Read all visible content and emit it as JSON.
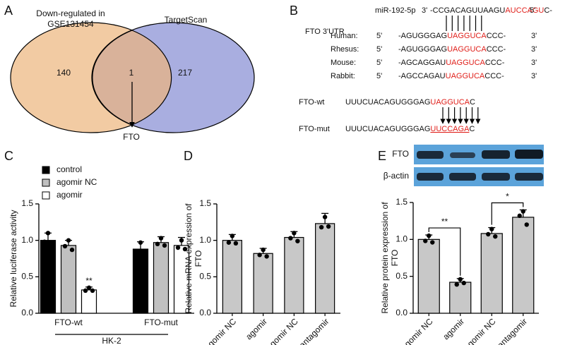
{
  "panel_labels": [
    "A",
    "B",
    "C",
    "D",
    "E"
  ],
  "venn": {
    "left_label": [
      "Down-regulated in",
      "GSE131454"
    ],
    "right_label": "TargetScan",
    "counts": [
      140,
      1,
      217
    ],
    "arrow_label": "FTO"
  },
  "sequence_panel": {
    "utr_label": "FTO 3'UTR",
    "mirna": {
      "name": "miR-192-5p",
      "left_end": "3'",
      "seq": [
        "-CCGACAGUUAAGU",
        "AUCCAGU",
        "C-"
      ],
      "right_end": "5'"
    },
    "species": [
      {
        "name": "Human:",
        "left_end": "5'",
        "seq": [
          "-AGUGGGAG",
          "UAGGUCA",
          "CCC-"
        ],
        "right_end": "3'"
      },
      {
        "name": "Rhesus:",
        "left_end": "5'",
        "seq": [
          "-AGUGGGAG",
          "UAGGUCA",
          "CCC-"
        ],
        "right_end": "3'"
      },
      {
        "name": "Mouse:",
        "left_end": "5'",
        "seq": [
          "-AGCAGGAU",
          "UAGGUCA",
          "CCC-"
        ],
        "right_end": "3'"
      },
      {
        "name": "Rabbit:",
        "left_end": "5'",
        "seq": [
          "-AGCCAGAU",
          "UAGGUCA",
          "CCC-"
        ],
        "right_end": "3'"
      }
    ],
    "constructs": [
      {
        "name": "FTO-wt",
        "seq": [
          "UUUCUACAGUGGGAG",
          "UAGGUCA",
          "C"
        ]
      },
      {
        "name": "FTO-mut",
        "seq": [
          "UUUCUACAGUGGGAG",
          "UUCCAGA",
          "C"
        ]
      }
    ]
  },
  "chart_data": [
    {
      "type": "bar",
      "ylabel": [
        "Relative luciferase activity"
      ],
      "categories": [
        "FTO-wt",
        "FTO-mut"
      ],
      "group_label": "HK-2",
      "ylim": [
        0,
        1.5
      ],
      "yticks": [
        {
          "value": 0,
          "label": "0.0"
        },
        0.5,
        {
          "value": 1,
          "label": "1.0"
        },
        1.5
      ],
      "series": [
        {
          "name": "control",
          "color": "#000000",
          "values": [
            1.0,
            0.88
          ],
          "errors": [
            0.1,
            0.1
          ],
          "points": [
            [
              1.1,
              0.98,
              0.92
            ],
            [
              0.97,
              0.85,
              0.82
            ]
          ],
          "significance": [
            null,
            null
          ]
        },
        {
          "name": "agomir NC",
          "color": "#c0c0c0",
          "values": [
            0.93,
            0.97
          ],
          "errors": [
            0.07,
            0.08
          ],
          "points": [
            [
              1.0,
              0.92,
              0.87
            ],
            [
              1.03,
              0.95,
              0.93
            ]
          ],
          "significance": [
            null,
            null
          ]
        },
        {
          "name": "agomir",
          "color": "#ffffff",
          "values": [
            0.32,
            0.93
          ],
          "errors": [
            0.04,
            0.11
          ],
          "points": [
            [
              0.35,
              0.31,
              0.31
            ],
            [
              1.0,
              0.9,
              0.88
            ]
          ],
          "significance": [
            "**",
            null
          ]
        }
      ]
    },
    {
      "type": "bar",
      "ylabel": [
        "Relative mRNA expression of",
        "FTO"
      ],
      "categories": [
        "agomir NC",
        "agomir",
        "antagomir NC",
        "antagomir"
      ],
      "ylim": [
        0,
        1.5
      ],
      "yticks": [
        {
          "value": 0,
          "label": "0.0"
        },
        0.5,
        {
          "value": 1,
          "label": "1.0"
        },
        1.5
      ],
      "color": "#c8c8c8",
      "values": [
        1.0,
        0.82,
        1.04,
        1.23
      ],
      "errors": [
        0.08,
        0.07,
        0.08,
        0.14
      ],
      "points": [
        [
          1.06,
          0.97,
          0.96
        ],
        [
          0.87,
          0.8,
          0.78
        ],
        [
          1.1,
          1.03,
          0.99
        ],
        [
          1.32,
          1.18,
          1.19
        ]
      ]
    },
    {
      "type": "bar",
      "ylabel": [
        "Relative protein expression of",
        "FTO"
      ],
      "categories": [
        "agomir NC",
        "agomir",
        "antagomir NC",
        "antagomir"
      ],
      "ylim": [
        0,
        1.5
      ],
      "yticks": [
        {
          "value": 0,
          "label": "0.0"
        },
        0.5,
        {
          "value": 1,
          "label": "1.0"
        },
        1.5
      ],
      "color": "#c8c8c8",
      "values": [
        1.0,
        0.42,
        1.08,
        1.3
      ],
      "errors": [
        0.06,
        0.05,
        0.08,
        0.1
      ],
      "points": [
        [
          1.05,
          0.98,
          0.96
        ],
        [
          0.46,
          0.39,
          0.41
        ],
        [
          1.14,
          1.07,
          1.04
        ],
        [
          1.38,
          1.32,
          1.2
        ]
      ],
      "comparisons": [
        {
          "pair": [
            "agomir NC",
            "agomir"
          ],
          "label": "**"
        },
        {
          "pair": [
            "antagomir NC",
            "antagomir"
          ],
          "label": "*"
        }
      ],
      "blot_labels": [
        "FTO",
        "β-actin"
      ]
    }
  ]
}
